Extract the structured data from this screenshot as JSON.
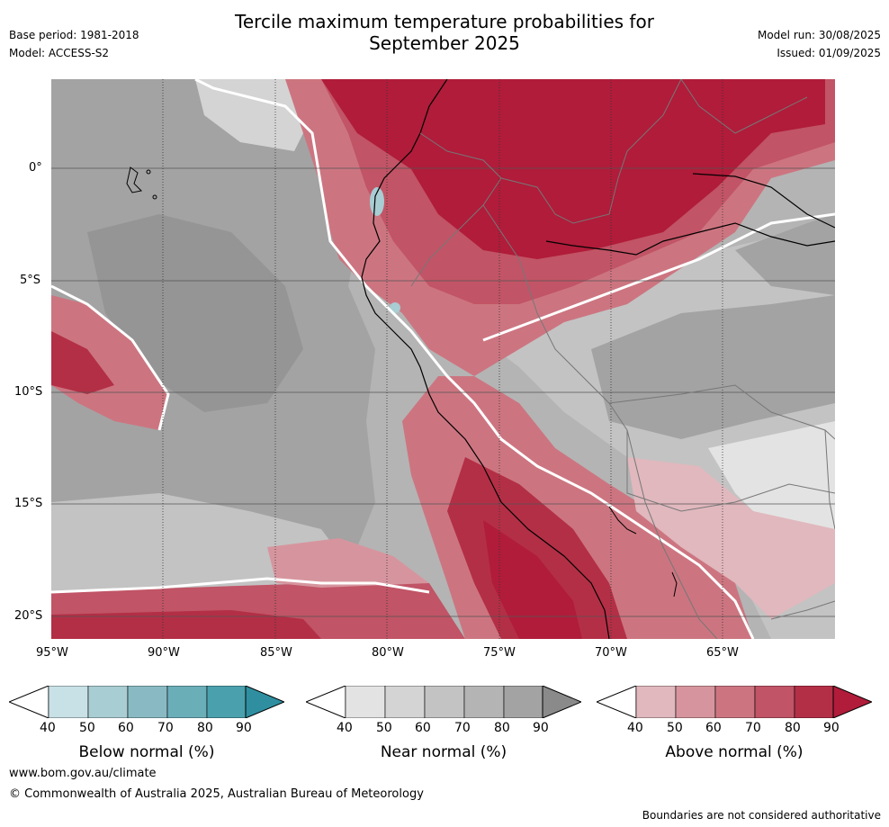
{
  "title": {
    "line1": "Tercile maximum temperature probabilities for",
    "line2": "September 2025"
  },
  "meta": {
    "base_period": "Base period: 1981-2018",
    "model": "Model: ACCESS-S2",
    "model_run": "Model run: 30/08/2025",
    "issued": "Issued: 01/09/2025"
  },
  "map": {
    "lat_labels": [
      "0°",
      "5°S",
      "10°S",
      "15°S",
      "20°S"
    ],
    "lon_labels": [
      "95°W",
      "90°W",
      "85°W",
      "80°W",
      "75°W",
      "70°W",
      "65°W"
    ]
  },
  "colorbars": {
    "ticks": [
      "40",
      "50",
      "60",
      "70",
      "80",
      "90"
    ],
    "below": {
      "title": "Below normal (%)",
      "colors": [
        "#c8e1e6",
        "#a8cdd3",
        "#89bac3",
        "#6aaeb8",
        "#4aa1ad",
        "#2f8fa0"
      ]
    },
    "near": {
      "title": "Near normal (%)",
      "colors": [
        "#e3e3e3",
        "#d4d4d4",
        "#c3c3c3",
        "#b4b4b4",
        "#a3a3a3",
        "#8a8a8a"
      ]
    },
    "above": {
      "title": "Above normal (%)",
      "colors": [
        "#e0b8bd",
        "#d6959e",
        "#cc7580",
        "#c15466",
        "#b32f46",
        "#b01c3a"
      ]
    }
  },
  "footer": {
    "url": "www.bom.gov.au/climate",
    "copyright": "© Commonwealth of Australia 2025, Australian Bureau of Meteorology",
    "disclaimer": "Boundaries are not considered authoritative"
  }
}
